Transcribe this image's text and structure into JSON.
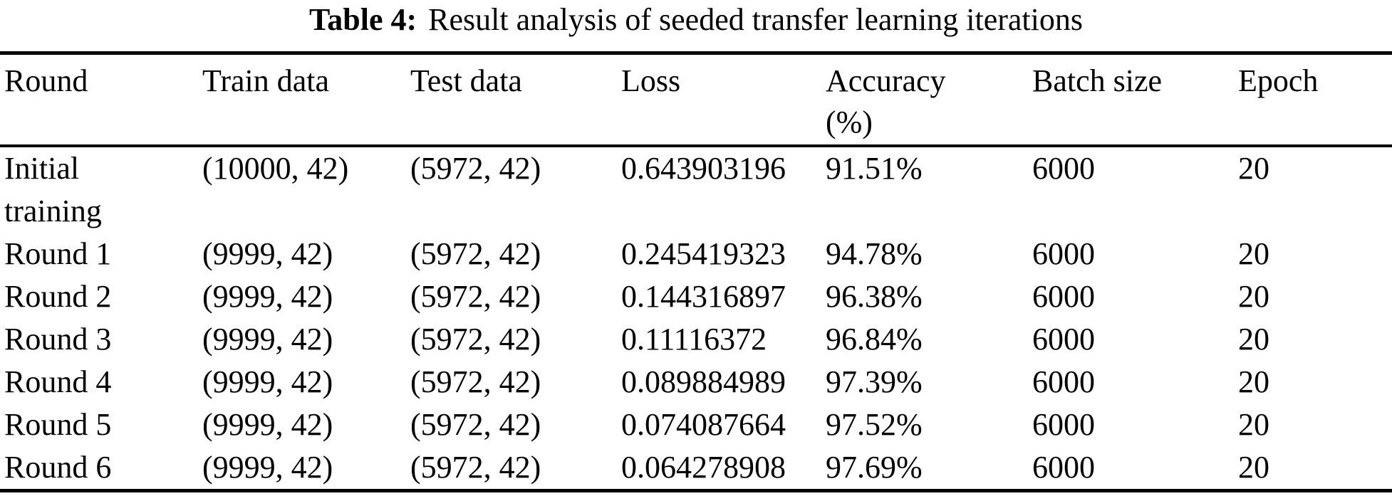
{
  "page": {
    "background": "#ffffff",
    "text_color": "#000000",
    "rule_color": "#000000"
  },
  "caption": {
    "label": "Table 4:",
    "text": "Result analysis of seeded transfer learning iterations"
  },
  "table": {
    "headers": [
      "Round",
      "Train data",
      "Test data",
      "Loss",
      "Accuracy\n(%)",
      "Batch size",
      "Epoch"
    ],
    "rows": [
      [
        "Initial\ntraining",
        "(10000, 42)",
        "(5972, 42)",
        "0.643903196",
        "91.51%",
        "6000",
        "20"
      ],
      [
        "Round 1",
        "(9999, 42)",
        "(5972, 42)",
        "0.245419323",
        "94.78%",
        "6000",
        "20"
      ],
      [
        "Round 2",
        "(9999, 42)",
        "(5972, 42)",
        "0.144316897",
        "96.38%",
        "6000",
        "20"
      ],
      [
        "Round 3",
        "(9999, 42)",
        "(5972, 42)",
        "0.11116372",
        "96.84%",
        "6000",
        "20"
      ],
      [
        "Round 4",
        "(9999, 42)",
        "(5972, 42)",
        "0.089884989",
        "97.39%",
        "6000",
        "20"
      ],
      [
        "Round 5",
        "(9999, 42)",
        "(5972, 42)",
        "0.074087664",
        "97.52%",
        "6000",
        "20"
      ],
      [
        "Round 6",
        "(9999, 42)",
        "(5972, 42)",
        "0.064278908",
        "97.69%",
        "6000",
        "20"
      ]
    ]
  },
  "chart_data": {
    "type": "table",
    "title": "Table 4: Result analysis of seeded transfer learning iterations",
    "columns": [
      "Round",
      "Train data",
      "Test data",
      "Loss",
      "Accuracy (%)",
      "Batch size",
      "Epoch"
    ],
    "rows": [
      [
        "Initial training",
        "(10000, 42)",
        "(5972, 42)",
        0.643903196,
        91.51,
        6000,
        20
      ],
      [
        "Round 1",
        "(9999, 42)",
        "(5972, 42)",
        0.245419323,
        94.78,
        6000,
        20
      ],
      [
        "Round 2",
        "(9999, 42)",
        "(5972, 42)",
        0.144316897,
        96.38,
        6000,
        20
      ],
      [
        "Round 3",
        "(9999, 42)",
        "(5972, 42)",
        0.11116372,
        96.84,
        6000,
        20
      ],
      [
        "Round 4",
        "(9999, 42)",
        "(5972, 42)",
        0.089884989,
        97.39,
        6000,
        20
      ],
      [
        "Round 5",
        "(9999, 42)",
        "(5972, 42)",
        0.074087664,
        97.52,
        6000,
        20
      ],
      [
        "Round 6",
        "(9999, 42)",
        "(5972, 42)",
        0.064278908,
        97.69,
        6000,
        20
      ]
    ],
    "series": [
      {
        "name": "Loss",
        "values": [
          0.643903196,
          0.245419323,
          0.144316897,
          0.11116372,
          0.089884989,
          0.074087664,
          0.064278908
        ]
      },
      {
        "name": "Accuracy (%)",
        "values": [
          91.51,
          94.78,
          96.38,
          96.84,
          97.39,
          97.52,
          97.69
        ]
      }
    ],
    "categories": [
      "Initial training",
      "Round 1",
      "Round 2",
      "Round 3",
      "Round 4",
      "Round 5",
      "Round 6"
    ]
  }
}
